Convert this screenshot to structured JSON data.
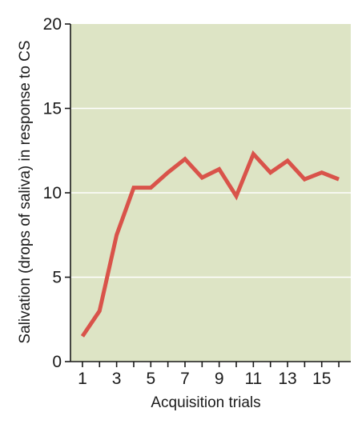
{
  "chart_data": {
    "type": "line",
    "title": "",
    "xlabel": "Acquisition trials",
    "ylabel": "Salivation (drops of saliva) in response to CS",
    "xlim": [
      0.3,
      16.7
    ],
    "ylim": [
      0,
      20
    ],
    "x_ticks": [
      "1",
      "3",
      "5",
      "7",
      "9",
      "11",
      "13",
      "15"
    ],
    "y_ticks": [
      "0",
      "5",
      "10",
      "15",
      "20"
    ],
    "grid": "horizontal",
    "legend": "none",
    "series": [
      {
        "x": [
          1,
          2,
          3,
          4,
          5,
          6,
          7,
          8,
          9,
          10,
          11,
          12,
          13,
          14,
          15,
          16
        ],
        "values": [
          1.5,
          3.0,
          7.5,
          10.3,
          10.3,
          11.2,
          12.0,
          10.9,
          11.4,
          9.8,
          12.3,
          11.2,
          11.9,
          10.8,
          11.2,
          10.8
        ]
      }
    ],
    "colors": {
      "plot_background": "#dde4c5",
      "line": "#d9534a",
      "grid": "#ffffff",
      "axis": "#1a1a1a"
    }
  }
}
